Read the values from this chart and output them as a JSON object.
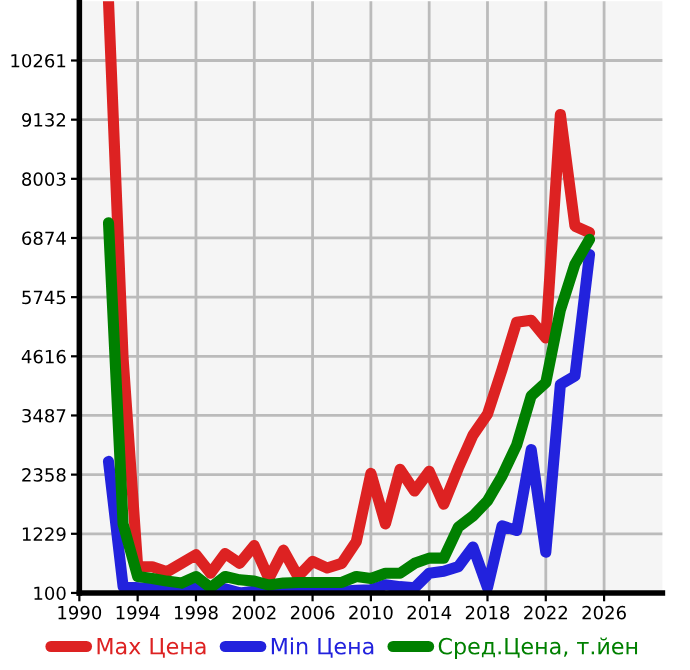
{
  "chart_data": {
    "type": "line",
    "x": [
      1992,
      1993,
      1994,
      1995,
      1996,
      1997,
      1998,
      1999,
      2000,
      2001,
      2002,
      2003,
      2004,
      2005,
      2006,
      2007,
      2008,
      2009,
      2010,
      2011,
      2012,
      2013,
      2014,
      2015,
      2016,
      2017,
      2018,
      2019,
      2020,
      2021,
      2022,
      2023,
      2024,
      2025
    ],
    "series": [
      {
        "name": "Max Цена",
        "color": "#dd2222",
        "values": [
          11390,
          4580,
          600,
          600,
          503,
          665,
          828,
          476,
          853,
          665,
          1003,
          375,
          916,
          414,
          702,
          577,
          665,
          1078,
          2383,
          1417,
          2458,
          2045,
          2421,
          1793,
          2483,
          3110,
          3513,
          4365,
          5268,
          5305,
          4967,
          9230,
          7100,
          6975
        ]
      },
      {
        "name": "Min Цена",
        "color": "#2222dd",
        "values": [
          2610,
          225,
          200,
          180,
          160,
          120,
          190,
          100,
          180,
          100,
          130,
          100,
          100,
          120,
          120,
          110,
          130,
          150,
          160,
          255,
          220,
          200,
          476,
          514,
          602,
          978,
          200,
          1380,
          1292,
          2835,
          878,
          4077,
          4240,
          6560
        ]
      },
      {
        "name": "Сред.Цена, т.йен",
        "color": "#008000",
        "values": [
          7163,
          1417,
          414,
          375,
          326,
          288,
          414,
          200,
          414,
          351,
          326,
          250,
          288,
          300,
          300,
          300,
          300,
          414,
          375,
          476,
          476,
          665,
          765,
          765,
          1355,
          1568,
          1857,
          2333,
          2922,
          3863,
          4114,
          5500,
          6372,
          6847
        ]
      }
    ],
    "xlim": [
      1990,
      2030
    ],
    "xticks": [
      1990,
      1994,
      1998,
      2002,
      2006,
      2010,
      2014,
      2018,
      2022,
      2026
    ],
    "ylim": [
      100,
      11390
    ],
    "yticks": [
      100,
      1229,
      2358,
      3487,
      4616,
      5745,
      6874,
      8003,
      9132,
      10261
    ],
    "grid": true,
    "legend": "bottom",
    "marker": "none",
    "line_style": "solid"
  }
}
